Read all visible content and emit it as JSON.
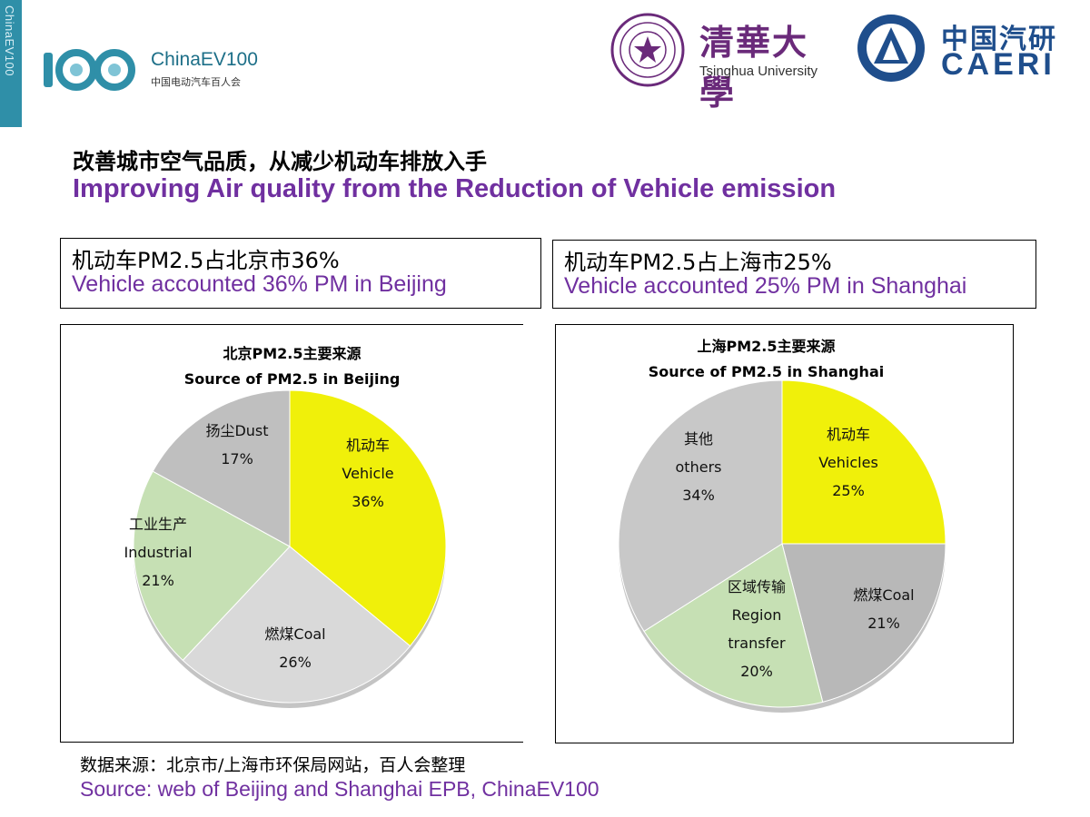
{
  "branding": {
    "side_text": "ChinaEV100",
    "ev_logo_text": "ChinaEV100",
    "ev_logo_sub": "中国电动汽车百人会",
    "thu_cn": "清華大學",
    "thu_en": "Tsinghua University",
    "caeri_cn": "中国汽研",
    "caeri_en": "CAERI",
    "colors": {
      "brand_teal": "#2f8fa8",
      "thu_purple": "#6a2a7a",
      "caeri_blue": "#1f4e8c",
      "accent_purple": "#7030a0"
    }
  },
  "title": {
    "cn": "改善城市空气品质，从减少机动车排放入手",
    "en": "Improving Air quality from the Reduction of Vehicle emission"
  },
  "beijing": {
    "box_cn": "机动车PM2.5占北京市36%",
    "box_en": "Vehicle accounted 36% PM in Beijing"
  },
  "shanghai": {
    "box_cn": "机动车PM2.5占上海市25%",
    "box_en": "Vehicle accounted 25% PM in Shanghai"
  },
  "chart_data": [
    {
      "type": "pie",
      "title": "北京PM2.5主要来源",
      "subtitle": "Source of PM2.5 in Beijing",
      "slices": [
        {
          "lines": [
            "机动车",
            "Vehicle",
            "36%"
          ],
          "value": 36,
          "color": "#f0f00a"
        },
        {
          "lines": [
            "燃煤Coal",
            "26%"
          ],
          "value": 26,
          "color": "#d9d9d9"
        },
        {
          "lines": [
            "工业生产",
            "Industrial",
            "21%"
          ],
          "value": 21,
          "color": "#c6e0b4"
        },
        {
          "lines": [
            "扬尘Dust",
            "17%"
          ],
          "value": 17,
          "color": "#bfbfbf"
        }
      ]
    },
    {
      "type": "pie",
      "title": "上海PM2.5主要来源",
      "subtitle": "Source of PM2.5 in Shanghai",
      "slices": [
        {
          "lines": [
            "机动车",
            "Vehicles",
            "25%"
          ],
          "value": 25,
          "color": "#f0f00a"
        },
        {
          "lines": [
            "燃煤Coal",
            "21%"
          ],
          "value": 21,
          "color": "#b8b8b8"
        },
        {
          "lines": [
            "区域传输",
            "Region",
            "transfer",
            "20%"
          ],
          "value": 20,
          "color": "#c6e0b4"
        },
        {
          "lines": [
            "其他",
            "others",
            "34%"
          ],
          "value": 34,
          "color": "#c8c8c8"
        }
      ]
    }
  ],
  "source": {
    "cn": "数据来源：北京市/上海市环保局网站，百人会整理",
    "en": "Source: web of Beijing and Shanghai EPB, ChinaEV100"
  }
}
